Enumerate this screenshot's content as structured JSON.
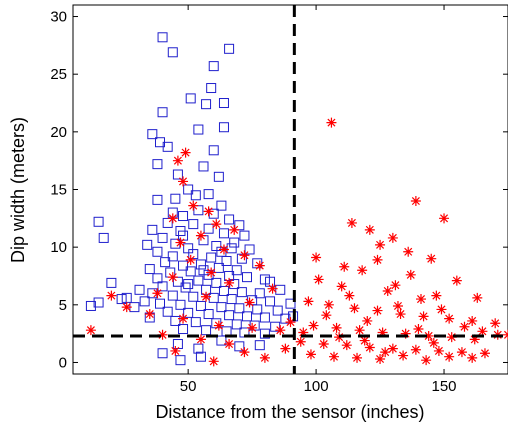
{
  "chart_data": {
    "type": "scatter",
    "xlabel": "Distance from the sensor (inches)",
    "ylabel": "Dip width (meters)",
    "xlim": [
      5,
      175
    ],
    "ylim": [
      -1,
      31
    ],
    "xticks": [
      50,
      100,
      150
    ],
    "yticks": [
      0,
      5,
      10,
      15,
      20,
      25,
      30
    ],
    "grid": false,
    "legend": "none",
    "reference_lines": [
      {
        "orientation": "vertical",
        "x": 91.5,
        "style": "dashed",
        "color": "#000000"
      },
      {
        "orientation": "horizontal",
        "y": 2.3,
        "style": "dashed",
        "color": "#000000"
      }
    ],
    "series": [
      {
        "marker": "square",
        "color": "#1f1fcc",
        "points": [
          [
            40,
            28.2
          ],
          [
            66,
            27.2
          ],
          [
            44,
            26.9
          ],
          [
            60,
            25.7
          ],
          [
            59,
            23.8
          ],
          [
            51,
            22.9
          ],
          [
            64,
            22.5
          ],
          [
            57,
            22.4
          ],
          [
            40,
            21.7
          ],
          [
            36,
            19.8
          ],
          [
            54,
            20.2
          ],
          [
            39,
            19.1
          ],
          [
            64,
            20.4
          ],
          [
            60,
            18.4
          ],
          [
            62,
            16.1
          ],
          [
            38,
            17.2
          ],
          [
            42,
            18.7
          ],
          [
            46,
            16.3
          ],
          [
            56,
            17.0
          ],
          [
            50,
            15.0
          ],
          [
            58,
            14.6
          ],
          [
            45,
            14.2
          ],
          [
            53,
            14.5
          ],
          [
            63,
            13.6
          ],
          [
            38,
            14.1
          ],
          [
            44,
            13.0
          ],
          [
            48,
            12.7
          ],
          [
            54,
            13.2
          ],
          [
            60,
            12.9
          ],
          [
            66,
            12.4
          ],
          [
            70,
            11.9
          ],
          [
            42,
            12.1
          ],
          [
            52,
            12.0
          ],
          [
            15,
            12.2
          ],
          [
            36,
            11.5
          ],
          [
            47,
            11.4
          ],
          [
            58,
            11.6
          ],
          [
            64,
            11.2
          ],
          [
            72,
            11.0
          ],
          [
            40,
            10.8
          ],
          [
            45,
            10.3
          ],
          [
            56,
            10.6
          ],
          [
            61,
            10.1
          ],
          [
            68,
            10.4
          ],
          [
            74,
            9.8
          ],
          [
            17,
            10.8
          ],
          [
            34,
            10.2
          ],
          [
            50,
            9.9
          ],
          [
            38,
            9.6
          ],
          [
            44,
            9.2
          ],
          [
            52,
            9.4
          ],
          [
            59,
            9.1
          ],
          [
            65,
            8.8
          ],
          [
            71,
            9.0
          ],
          [
            77,
            8.6
          ],
          [
            41,
            8.7
          ],
          [
            48,
            8.4
          ],
          [
            55,
            8.5
          ],
          [
            62,
            8.2
          ],
          [
            69,
            8.0
          ],
          [
            35,
            8.1
          ],
          [
            43,
            7.8
          ],
          [
            51,
            7.9
          ],
          [
            58,
            7.6
          ],
          [
            66,
            7.5
          ],
          [
            73,
            7.4
          ],
          [
            80,
            7.2
          ],
          [
            38,
            7.3
          ],
          [
            46,
            7.0
          ],
          [
            54,
            7.1
          ],
          [
            61,
            6.9
          ],
          [
            68,
            6.8
          ],
          [
            20,
            6.9
          ],
          [
            40,
            6.6
          ],
          [
            49,
            6.5
          ],
          [
            57,
            6.3
          ],
          [
            64,
            6.2
          ],
          [
            71,
            6.1
          ],
          [
            78,
            6.0
          ],
          [
            36,
            6.0
          ],
          [
            44,
            5.8
          ],
          [
            52,
            5.7
          ],
          [
            60,
            5.6
          ],
          [
            67,
            5.5
          ],
          [
            75,
            5.4
          ],
          [
            82,
            5.3
          ],
          [
            15,
            5.2
          ],
          [
            24,
            5.5
          ],
          [
            33,
            5.3
          ],
          [
            39,
            5.1
          ],
          [
            47,
            5.0
          ],
          [
            55,
            4.9
          ],
          [
            63,
            4.8
          ],
          [
            70,
            4.7
          ],
          [
            77,
            4.6
          ],
          [
            85,
            4.5
          ],
          [
            29,
            4.8
          ],
          [
            42,
            4.4
          ],
          [
            50,
            4.3
          ],
          [
            58,
            4.2
          ],
          [
            66,
            4.1
          ],
          [
            73,
            4.0
          ],
          [
            80,
            3.9
          ],
          [
            88,
            3.8
          ],
          [
            35,
            3.9
          ],
          [
            45,
            3.6
          ],
          [
            53,
            3.5
          ],
          [
            61,
            3.4
          ],
          [
            69,
            3.3
          ],
          [
            76,
            3.2
          ],
          [
            84,
            3.1
          ],
          [
            48,
            2.9
          ],
          [
            57,
            2.8
          ],
          [
            65,
            2.7
          ],
          [
            72,
            2.6
          ],
          [
            80,
            2.5
          ],
          [
            90,
            5.1
          ],
          [
            91,
            4.0
          ],
          [
            86,
            6.3
          ],
          [
            82,
            7.0
          ],
          [
            46,
            1.6
          ],
          [
            54,
            1.2
          ],
          [
            63,
            1.9
          ],
          [
            70,
            1.4
          ],
          [
            47,
            0.2
          ],
          [
            55,
            0.5
          ],
          [
            40,
            0.8
          ],
          [
            78,
            1.5
          ],
          [
            12,
            4.9
          ],
          [
            26,
            5.6
          ],
          [
            31,
            6.3
          ],
          [
            50,
            6.8
          ],
          [
            56,
            8.0
          ],
          [
            63,
            9.6
          ],
          [
            67,
            9.9
          ],
          [
            48,
            11.0
          ]
        ]
      },
      {
        "marker": "asterisk",
        "color": "#ff0000",
        "points": [
          [
            49,
            18.2
          ],
          [
            46,
            17.5
          ],
          [
            48,
            15.7
          ],
          [
            52,
            13.6
          ],
          [
            58,
            13.1
          ],
          [
            44,
            12.5
          ],
          [
            61,
            12.0
          ],
          [
            68,
            11.5
          ],
          [
            55,
            11.0
          ],
          [
            47,
            10.4
          ],
          [
            64,
            9.8
          ],
          [
            72,
            9.3
          ],
          [
            51,
            8.9
          ],
          [
            78,
            8.4
          ],
          [
            59,
            7.8
          ],
          [
            44,
            7.4
          ],
          [
            66,
            6.9
          ],
          [
            83,
            6.4
          ],
          [
            38,
            6.0
          ],
          [
            57,
            5.7
          ],
          [
            74,
            5.2
          ],
          [
            20,
            5.8
          ],
          [
            26,
            4.8
          ],
          [
            35,
            4.2
          ],
          [
            48,
            3.8
          ],
          [
            62,
            3.2
          ],
          [
            75,
            3.0
          ],
          [
            86,
            2.8
          ],
          [
            90,
            3.5
          ],
          [
            12,
            2.8
          ],
          [
            40,
            2.4
          ],
          [
            55,
            2.0
          ],
          [
            66,
            1.6
          ],
          [
            72,
            0.9
          ],
          [
            80,
            0.4
          ],
          [
            60,
            0.1
          ],
          [
            88,
            1.2
          ],
          [
            45,
            1.0
          ],
          [
            106,
            20.8
          ],
          [
            114,
            12.1
          ],
          [
            121,
            11.5
          ],
          [
            130,
            10.8
          ],
          [
            139,
            14.0
          ],
          [
            150,
            12.5
          ],
          [
            125,
            10.2
          ],
          [
            136,
            9.6
          ],
          [
            145,
            9.0
          ],
          [
            124,
            8.9
          ],
          [
            111,
            8.3
          ],
          [
            118,
            8.0
          ],
          [
            137,
            7.6
          ],
          [
            155,
            7.1
          ],
          [
            101,
            7.2
          ],
          [
            110,
            6.6
          ],
          [
            128,
            6.2
          ],
          [
            147,
            5.8
          ],
          [
            163,
            5.6
          ],
          [
            97,
            5.3
          ],
          [
            105,
            5.0
          ],
          [
            115,
            4.7
          ],
          [
            124,
            4.5
          ],
          [
            133,
            4.2
          ],
          [
            142,
            4.0
          ],
          [
            152,
            3.8
          ],
          [
            161,
            3.6
          ],
          [
            170,
            3.4
          ],
          [
            99,
            3.2
          ],
          [
            108,
            3.0
          ],
          [
            117,
            2.8
          ],
          [
            126,
            2.6
          ],
          [
            135,
            2.5
          ],
          [
            144,
            2.3
          ],
          [
            153,
            2.2
          ],
          [
            162,
            2.0
          ],
          [
            171,
            2.4
          ],
          [
            94,
            1.8
          ],
          [
            103,
            1.6
          ],
          [
            112,
            1.5
          ],
          [
            121,
            1.3
          ],
          [
            130,
            1.2
          ],
          [
            139,
            1.1
          ],
          [
            148,
            1.0
          ],
          [
            157,
            0.9
          ],
          [
            166,
            0.8
          ],
          [
            98,
            0.7
          ],
          [
            107,
            0.5
          ],
          [
            116,
            0.4
          ],
          [
            125,
            0.3
          ],
          [
            134,
            0.6
          ],
          [
            143,
            0.2
          ],
          [
            152,
            0.5
          ],
          [
            161,
            0.4
          ],
          [
            95,
            2.6
          ],
          [
            120,
            3.6
          ],
          [
            140,
            2.9
          ],
          [
            158,
            3.1
          ],
          [
            113,
            5.8
          ],
          [
            131,
            6.7
          ],
          [
            104,
            4.1
          ],
          [
            149,
            4.6
          ],
          [
            165,
            2.7
          ],
          [
            175,
            2.4
          ],
          [
            100,
            9.1
          ],
          [
            132,
            4.9
          ],
          [
            141,
            5.5
          ],
          [
            119,
            1.9
          ],
          [
            127,
            0.9
          ],
          [
            146,
            1.7
          ],
          [
            109,
            2.2
          ]
        ]
      }
    ]
  }
}
